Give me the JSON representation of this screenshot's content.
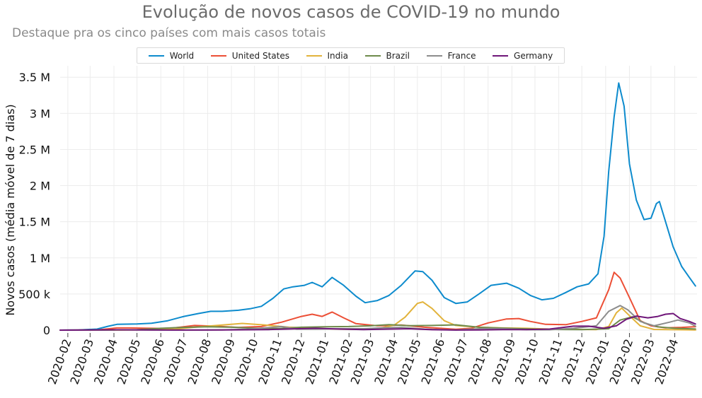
{
  "chart_data": {
    "type": "line",
    "title": "Evolução de novos casos de COVID-19 no mundo",
    "subtitle": "Destaque pra os cinco países com mais casos totais",
    "ylabel": "Novos casos (média móvel de 7 dias)",
    "xlabel": "",
    "ylim": [
      0,
      3600000
    ],
    "xlim": [
      "2020-01-22",
      "2022-04-30"
    ],
    "grid": true,
    "legend_position": "top",
    "x_ticks": [
      "2020-02",
      "2020-03",
      "2020-04",
      "2020-05",
      "2020-06",
      "2020-07",
      "2020-08",
      "2020-09",
      "2020-10",
      "2020-11",
      "2020-12",
      "2021-01",
      "2021-02",
      "2021-03",
      "2021-04",
      "2021-05",
      "2021-06",
      "2021-07",
      "2021-08",
      "2021-09",
      "2021-10",
      "2021-11",
      "2021-12",
      "2022-01",
      "2022-02",
      "2022-03",
      "2022-04"
    ],
    "y_ticks": [
      {
        "value": 0,
        "label": "0"
      },
      {
        "value": 500000,
        "label": "500 k"
      },
      {
        "value": 1000000,
        "label": "1 M"
      },
      {
        "value": 1500000,
        "label": "1.5 M"
      },
      {
        "value": 2000000,
        "label": "2 M"
      },
      {
        "value": 2500000,
        "label": "2.5 M"
      },
      {
        "value": 3000000,
        "label": "3 M"
      },
      {
        "value": 3500000,
        "label": "3.5 M"
      }
    ],
    "series": [
      {
        "name": "World",
        "color": "#0d8bcd",
        "points": [
          [
            "2020-01-22",
            0
          ],
          [
            "2020-02-15",
            3000
          ],
          [
            "2020-03-10",
            15000
          ],
          [
            "2020-03-25",
            55000
          ],
          [
            "2020-04-05",
            80000
          ],
          [
            "2020-05-01",
            85000
          ],
          [
            "2020-05-20",
            95000
          ],
          [
            "2020-06-10",
            130000
          ],
          [
            "2020-07-01",
            190000
          ],
          [
            "2020-07-20",
            230000
          ],
          [
            "2020-08-05",
            260000
          ],
          [
            "2020-08-20",
            260000
          ],
          [
            "2020-09-10",
            275000
          ],
          [
            "2020-09-25",
            295000
          ],
          [
            "2020-10-10",
            330000
          ],
          [
            "2020-10-25",
            440000
          ],
          [
            "2020-11-08",
            570000
          ],
          [
            "2020-11-20",
            600000
          ],
          [
            "2020-12-05",
            620000
          ],
          [
            "2020-12-15",
            660000
          ],
          [
            "2020-12-28",
            600000
          ],
          [
            "2021-01-10",
            730000
          ],
          [
            "2021-01-25",
            620000
          ],
          [
            "2021-02-10",
            470000
          ],
          [
            "2021-02-22",
            380000
          ],
          [
            "2021-03-10",
            410000
          ],
          [
            "2021-03-25",
            480000
          ],
          [
            "2021-04-10",
            620000
          ],
          [
            "2021-04-28",
            820000
          ],
          [
            "2021-05-08",
            810000
          ],
          [
            "2021-05-20",
            690000
          ],
          [
            "2021-06-05",
            450000
          ],
          [
            "2021-06-20",
            370000
          ],
          [
            "2021-07-05",
            390000
          ],
          [
            "2021-07-20",
            500000
          ],
          [
            "2021-08-05",
            620000
          ],
          [
            "2021-08-25",
            650000
          ],
          [
            "2021-09-10",
            580000
          ],
          [
            "2021-09-25",
            480000
          ],
          [
            "2021-10-10",
            420000
          ],
          [
            "2021-10-25",
            440000
          ],
          [
            "2021-11-10",
            520000
          ],
          [
            "2021-11-25",
            600000
          ],
          [
            "2021-12-10",
            640000
          ],
          [
            "2021-12-22",
            780000
          ],
          [
            "2021-12-30",
            1300000
          ],
          [
            "2022-01-05",
            2200000
          ],
          [
            "2022-01-12",
            2950000
          ],
          [
            "2022-01-18",
            3420000
          ],
          [
            "2022-01-25",
            3100000
          ],
          [
            "2022-02-01",
            2300000
          ],
          [
            "2022-02-10",
            1800000
          ],
          [
            "2022-02-20",
            1530000
          ],
          [
            "2022-03-01",
            1550000
          ],
          [
            "2022-03-08",
            1750000
          ],
          [
            "2022-03-12",
            1780000
          ],
          [
            "2022-03-20",
            1500000
          ],
          [
            "2022-03-30",
            1150000
          ],
          [
            "2022-04-10",
            880000
          ],
          [
            "2022-04-20",
            730000
          ],
          [
            "2022-04-28",
            610000
          ]
        ]
      },
      {
        "name": "United States",
        "color": "#ec4f36",
        "points": [
          [
            "2020-01-22",
            0
          ],
          [
            "2020-03-10",
            2000
          ],
          [
            "2020-04-05",
            30000
          ],
          [
            "2020-04-20",
            30000
          ],
          [
            "2020-06-10",
            22000
          ],
          [
            "2020-07-15",
            65000
          ],
          [
            "2020-08-10",
            55000
          ],
          [
            "2020-09-10",
            38000
          ],
          [
            "2020-10-10",
            50000
          ],
          [
            "2020-11-05",
            110000
          ],
          [
            "2020-12-01",
            190000
          ],
          [
            "2020-12-15",
            220000
          ],
          [
            "2020-12-28",
            190000
          ],
          [
            "2021-01-10",
            250000
          ],
          [
            "2021-01-25",
            170000
          ],
          [
            "2021-02-10",
            90000
          ],
          [
            "2021-03-10",
            60000
          ],
          [
            "2021-04-10",
            70000
          ],
          [
            "2021-05-10",
            40000
          ],
          [
            "2021-06-20",
            12000
          ],
          [
            "2021-07-10",
            25000
          ],
          [
            "2021-08-01",
            100000
          ],
          [
            "2021-08-25",
            155000
          ],
          [
            "2021-09-10",
            160000
          ],
          [
            "2021-09-25",
            120000
          ],
          [
            "2021-10-15",
            80000
          ],
          [
            "2021-11-10",
            75000
          ],
          [
            "2021-12-01",
            120000
          ],
          [
            "2021-12-20",
            170000
          ],
          [
            "2022-01-05",
            560000
          ],
          [
            "2022-01-12",
            800000
          ],
          [
            "2022-01-20",
            720000
          ],
          [
            "2022-02-01",
            450000
          ],
          [
            "2022-02-15",
            130000
          ],
          [
            "2022-03-01",
            60000
          ],
          [
            "2022-03-20",
            32000
          ],
          [
            "2022-04-10",
            38000
          ],
          [
            "2022-04-28",
            48000
          ]
        ]
      },
      {
        "name": "India",
        "color": "#e2b33b",
        "points": [
          [
            "2020-01-22",
            0
          ],
          [
            "2020-04-10",
            1000
          ],
          [
            "2020-05-20",
            6000
          ],
          [
            "2020-06-20",
            15000
          ],
          [
            "2020-07-20",
            45000
          ],
          [
            "2020-08-20",
            70000
          ],
          [
            "2020-09-15",
            93000
          ],
          [
            "2020-10-15",
            70000
          ],
          [
            "2020-11-15",
            40000
          ],
          [
            "2020-12-15",
            25000
          ],
          [
            "2021-01-20",
            14000
          ],
          [
            "2021-02-10",
            11000
          ],
          [
            "2021-03-10",
            20000
          ],
          [
            "2021-04-01",
            70000
          ],
          [
            "2021-04-15",
            180000
          ],
          [
            "2021-05-01",
            370000
          ],
          [
            "2021-05-08",
            390000
          ],
          [
            "2021-05-20",
            300000
          ],
          [
            "2021-06-05",
            130000
          ],
          [
            "2021-06-20",
            65000
          ],
          [
            "2021-07-20",
            40000
          ],
          [
            "2021-08-20",
            30000
          ],
          [
            "2021-09-20",
            25000
          ],
          [
            "2021-10-20",
            15000
          ],
          [
            "2021-12-20",
            8000
          ],
          [
            "2022-01-05",
            50000
          ],
          [
            "2022-01-15",
            240000
          ],
          [
            "2022-01-22",
            305000
          ],
          [
            "2022-02-01",
            200000
          ],
          [
            "2022-02-15",
            60000
          ],
          [
            "2022-03-05",
            10000
          ],
          [
            "2022-04-28",
            2000
          ]
        ]
      },
      {
        "name": "Brazil",
        "color": "#6e8a4a",
        "points": [
          [
            "2020-01-22",
            0
          ],
          [
            "2020-03-20",
            1000
          ],
          [
            "2020-05-01",
            6000
          ],
          [
            "2020-06-01",
            25000
          ],
          [
            "2020-07-01",
            38000
          ],
          [
            "2020-08-01",
            46000
          ],
          [
            "2020-09-01",
            40000
          ],
          [
            "2020-10-01",
            27000
          ],
          [
            "2020-11-01",
            22000
          ],
          [
            "2020-12-01",
            40000
          ],
          [
            "2021-01-01",
            47000
          ],
          [
            "2021-02-01",
            50000
          ],
          [
            "2021-03-01",
            60000
          ],
          [
            "2021-03-25",
            76000
          ],
          [
            "2021-04-20",
            62000
          ],
          [
            "2021-05-20",
            65000
          ],
          [
            "2021-06-20",
            73000
          ],
          [
            "2021-07-20",
            40000
          ],
          [
            "2021-08-20",
            28000
          ],
          [
            "2021-09-20",
            17000
          ],
          [
            "2021-10-20",
            10000
          ],
          [
            "2021-12-01",
            8000
          ],
          [
            "2022-01-05",
            20000
          ],
          [
            "2022-01-20",
            140000
          ],
          [
            "2022-02-05",
            185000
          ],
          [
            "2022-02-20",
            100000
          ],
          [
            "2022-03-10",
            45000
          ],
          [
            "2022-04-01",
            25000
          ],
          [
            "2022-04-28",
            16000
          ]
        ]
      },
      {
        "name": "France",
        "color": "#8c8c8c",
        "points": [
          [
            "2020-01-22",
            0
          ],
          [
            "2020-03-20",
            2000
          ],
          [
            "2020-04-05",
            4000
          ],
          [
            "2020-05-20",
            500
          ],
          [
            "2020-07-20",
            800
          ],
          [
            "2020-08-20",
            4000
          ],
          [
            "2020-09-20",
            12000
          ],
          [
            "2020-10-20",
            35000
          ],
          [
            "2020-11-05",
            50000
          ],
          [
            "2020-11-25",
            15000
          ],
          [
            "2020-12-20",
            15000
          ],
          [
            "2021-01-20",
            20000
          ],
          [
            "2021-02-20",
            20000
          ],
          [
            "2021-03-20",
            34000
          ],
          [
            "2021-04-10",
            38000
          ],
          [
            "2021-05-10",
            15000
          ],
          [
            "2021-06-20",
            2000
          ],
          [
            "2021-07-25",
            22000
          ],
          [
            "2021-08-20",
            20000
          ],
          [
            "2021-09-20",
            6000
          ],
          [
            "2021-10-20",
            5000
          ],
          [
            "2021-11-20",
            25000
          ],
          [
            "2021-12-20",
            60000
          ],
          [
            "2022-01-05",
            260000
          ],
          [
            "2022-01-20",
            340000
          ],
          [
            "2022-01-30",
            280000
          ],
          [
            "2022-02-15",
            120000
          ],
          [
            "2022-03-05",
            60000
          ],
          [
            "2022-03-25",
            110000
          ],
          [
            "2022-04-05",
            140000
          ],
          [
            "2022-04-20",
            100000
          ],
          [
            "2022-04-28",
            55000
          ]
        ]
      },
      {
        "name": "Germany",
        "color": "#6f1679",
        "points": [
          [
            "2020-01-22",
            0
          ],
          [
            "2020-03-20",
            4000
          ],
          [
            "2020-04-05",
            5000
          ],
          [
            "2020-06-20",
            500
          ],
          [
            "2020-08-20",
            1500
          ],
          [
            "2020-10-20",
            8000
          ],
          [
            "2020-11-20",
            18000
          ],
          [
            "2020-12-20",
            25000
          ],
          [
            "2021-01-20",
            15000
          ],
          [
            "2021-02-20",
            8000
          ],
          [
            "2021-03-25",
            15000
          ],
          [
            "2021-04-20",
            20000
          ],
          [
            "2021-05-20",
            6000
          ],
          [
            "2021-06-20",
            600
          ],
          [
            "2021-07-20",
            1500
          ],
          [
            "2021-08-20",
            8000
          ],
          [
            "2021-09-20",
            8000
          ],
          [
            "2021-10-20",
            15000
          ],
          [
            "2021-11-20",
            55000
          ],
          [
            "2021-12-10",
            55000
          ],
          [
            "2021-12-30",
            25000
          ],
          [
            "2022-01-15",
            60000
          ],
          [
            "2022-01-28",
            150000
          ],
          [
            "2022-02-10",
            195000
          ],
          [
            "2022-02-25",
            170000
          ],
          [
            "2022-03-10",
            190000
          ],
          [
            "2022-03-20",
            220000
          ],
          [
            "2022-03-30",
            230000
          ],
          [
            "2022-04-08",
            160000
          ],
          [
            "2022-04-20",
            120000
          ],
          [
            "2022-04-28",
            85000
          ]
        ]
      }
    ]
  }
}
